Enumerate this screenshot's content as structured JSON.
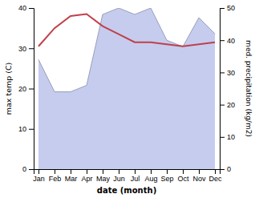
{
  "chart_data": {
    "type": "line",
    "categories": [
      "Jan",
      "Feb",
      "Mar",
      "Apr",
      "May",
      "Jun",
      "Jul",
      "Aug",
      "Sep",
      "Oct",
      "Nov",
      "Dec"
    ],
    "series": [
      {
        "type": "area",
        "axis": "y2",
        "color": "#c5ccee",
        "values": [
          34,
          24,
          24,
          26,
          48,
          50,
          48,
          50,
          40,
          38,
          47,
          42
        ]
      },
      {
        "type": "line",
        "color": "#c0404a",
        "values": [
          30.5,
          35.0,
          38.0,
          38.5,
          35.5,
          33.5,
          31.5,
          31.5,
          31.0,
          30.5,
          31.0,
          31.5
        ]
      }
    ],
    "xlabel": "date (month)",
    "ylabel": "max temp (C)",
    "y2label": "med. precipitation (kg/m2)",
    "ylim": [
      0,
      40
    ],
    "yticks": [
      0,
      10,
      20,
      30,
      40
    ],
    "y2lim": [
      0,
      50
    ],
    "y2ticks": [
      0,
      10,
      20,
      30,
      40,
      50
    ],
    "grid": false
  }
}
